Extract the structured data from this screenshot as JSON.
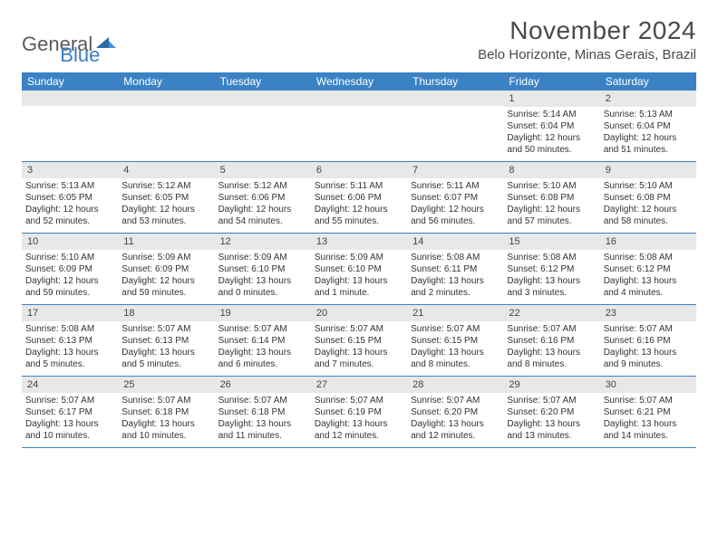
{
  "logo": {
    "text1": "General",
    "text2": "Blue"
  },
  "header": {
    "title": "November 2024",
    "location": "Belo Horizonte, Minas Gerais, Brazil"
  },
  "colors": {
    "header_bg": "#3b82c4",
    "header_text": "#ffffff",
    "daynum_bg": "#e8e8e8",
    "border": "#3b82c4",
    "text": "#333333",
    "logo_gray": "#5a5a5a",
    "logo_blue": "#3b7cc4"
  },
  "day_names": [
    "Sunday",
    "Monday",
    "Tuesday",
    "Wednesday",
    "Thursday",
    "Friday",
    "Saturday"
  ],
  "weeks": [
    [
      {
        "n": "",
        "sunrise": "",
        "sunset": "",
        "daylight": ""
      },
      {
        "n": "",
        "sunrise": "",
        "sunset": "",
        "daylight": ""
      },
      {
        "n": "",
        "sunrise": "",
        "sunset": "",
        "daylight": ""
      },
      {
        "n": "",
        "sunrise": "",
        "sunset": "",
        "daylight": ""
      },
      {
        "n": "",
        "sunrise": "",
        "sunset": "",
        "daylight": ""
      },
      {
        "n": "1",
        "sunrise": "Sunrise: 5:14 AM",
        "sunset": "Sunset: 6:04 PM",
        "daylight": "Daylight: 12 hours and 50 minutes."
      },
      {
        "n": "2",
        "sunrise": "Sunrise: 5:13 AM",
        "sunset": "Sunset: 6:04 PM",
        "daylight": "Daylight: 12 hours and 51 minutes."
      }
    ],
    [
      {
        "n": "3",
        "sunrise": "Sunrise: 5:13 AM",
        "sunset": "Sunset: 6:05 PM",
        "daylight": "Daylight: 12 hours and 52 minutes."
      },
      {
        "n": "4",
        "sunrise": "Sunrise: 5:12 AM",
        "sunset": "Sunset: 6:05 PM",
        "daylight": "Daylight: 12 hours and 53 minutes."
      },
      {
        "n": "5",
        "sunrise": "Sunrise: 5:12 AM",
        "sunset": "Sunset: 6:06 PM",
        "daylight": "Daylight: 12 hours and 54 minutes."
      },
      {
        "n": "6",
        "sunrise": "Sunrise: 5:11 AM",
        "sunset": "Sunset: 6:06 PM",
        "daylight": "Daylight: 12 hours and 55 minutes."
      },
      {
        "n": "7",
        "sunrise": "Sunrise: 5:11 AM",
        "sunset": "Sunset: 6:07 PM",
        "daylight": "Daylight: 12 hours and 56 minutes."
      },
      {
        "n": "8",
        "sunrise": "Sunrise: 5:10 AM",
        "sunset": "Sunset: 6:08 PM",
        "daylight": "Daylight: 12 hours and 57 minutes."
      },
      {
        "n": "9",
        "sunrise": "Sunrise: 5:10 AM",
        "sunset": "Sunset: 6:08 PM",
        "daylight": "Daylight: 12 hours and 58 minutes."
      }
    ],
    [
      {
        "n": "10",
        "sunrise": "Sunrise: 5:10 AM",
        "sunset": "Sunset: 6:09 PM",
        "daylight": "Daylight: 12 hours and 59 minutes."
      },
      {
        "n": "11",
        "sunrise": "Sunrise: 5:09 AM",
        "sunset": "Sunset: 6:09 PM",
        "daylight": "Daylight: 12 hours and 59 minutes."
      },
      {
        "n": "12",
        "sunrise": "Sunrise: 5:09 AM",
        "sunset": "Sunset: 6:10 PM",
        "daylight": "Daylight: 13 hours and 0 minutes."
      },
      {
        "n": "13",
        "sunrise": "Sunrise: 5:09 AM",
        "sunset": "Sunset: 6:10 PM",
        "daylight": "Daylight: 13 hours and 1 minute."
      },
      {
        "n": "14",
        "sunrise": "Sunrise: 5:08 AM",
        "sunset": "Sunset: 6:11 PM",
        "daylight": "Daylight: 13 hours and 2 minutes."
      },
      {
        "n": "15",
        "sunrise": "Sunrise: 5:08 AM",
        "sunset": "Sunset: 6:12 PM",
        "daylight": "Daylight: 13 hours and 3 minutes."
      },
      {
        "n": "16",
        "sunrise": "Sunrise: 5:08 AM",
        "sunset": "Sunset: 6:12 PM",
        "daylight": "Daylight: 13 hours and 4 minutes."
      }
    ],
    [
      {
        "n": "17",
        "sunrise": "Sunrise: 5:08 AM",
        "sunset": "Sunset: 6:13 PM",
        "daylight": "Daylight: 13 hours and 5 minutes."
      },
      {
        "n": "18",
        "sunrise": "Sunrise: 5:07 AM",
        "sunset": "Sunset: 6:13 PM",
        "daylight": "Daylight: 13 hours and 5 minutes."
      },
      {
        "n": "19",
        "sunrise": "Sunrise: 5:07 AM",
        "sunset": "Sunset: 6:14 PM",
        "daylight": "Daylight: 13 hours and 6 minutes."
      },
      {
        "n": "20",
        "sunrise": "Sunrise: 5:07 AM",
        "sunset": "Sunset: 6:15 PM",
        "daylight": "Daylight: 13 hours and 7 minutes."
      },
      {
        "n": "21",
        "sunrise": "Sunrise: 5:07 AM",
        "sunset": "Sunset: 6:15 PM",
        "daylight": "Daylight: 13 hours and 8 minutes."
      },
      {
        "n": "22",
        "sunrise": "Sunrise: 5:07 AM",
        "sunset": "Sunset: 6:16 PM",
        "daylight": "Daylight: 13 hours and 8 minutes."
      },
      {
        "n": "23",
        "sunrise": "Sunrise: 5:07 AM",
        "sunset": "Sunset: 6:16 PM",
        "daylight": "Daylight: 13 hours and 9 minutes."
      }
    ],
    [
      {
        "n": "24",
        "sunrise": "Sunrise: 5:07 AM",
        "sunset": "Sunset: 6:17 PM",
        "daylight": "Daylight: 13 hours and 10 minutes."
      },
      {
        "n": "25",
        "sunrise": "Sunrise: 5:07 AM",
        "sunset": "Sunset: 6:18 PM",
        "daylight": "Daylight: 13 hours and 10 minutes."
      },
      {
        "n": "26",
        "sunrise": "Sunrise: 5:07 AM",
        "sunset": "Sunset: 6:18 PM",
        "daylight": "Daylight: 13 hours and 11 minutes."
      },
      {
        "n": "27",
        "sunrise": "Sunrise: 5:07 AM",
        "sunset": "Sunset: 6:19 PM",
        "daylight": "Daylight: 13 hours and 12 minutes."
      },
      {
        "n": "28",
        "sunrise": "Sunrise: 5:07 AM",
        "sunset": "Sunset: 6:20 PM",
        "daylight": "Daylight: 13 hours and 12 minutes."
      },
      {
        "n": "29",
        "sunrise": "Sunrise: 5:07 AM",
        "sunset": "Sunset: 6:20 PM",
        "daylight": "Daylight: 13 hours and 13 minutes."
      },
      {
        "n": "30",
        "sunrise": "Sunrise: 5:07 AM",
        "sunset": "Sunset: 6:21 PM",
        "daylight": "Daylight: 13 hours and 14 minutes."
      }
    ]
  ]
}
